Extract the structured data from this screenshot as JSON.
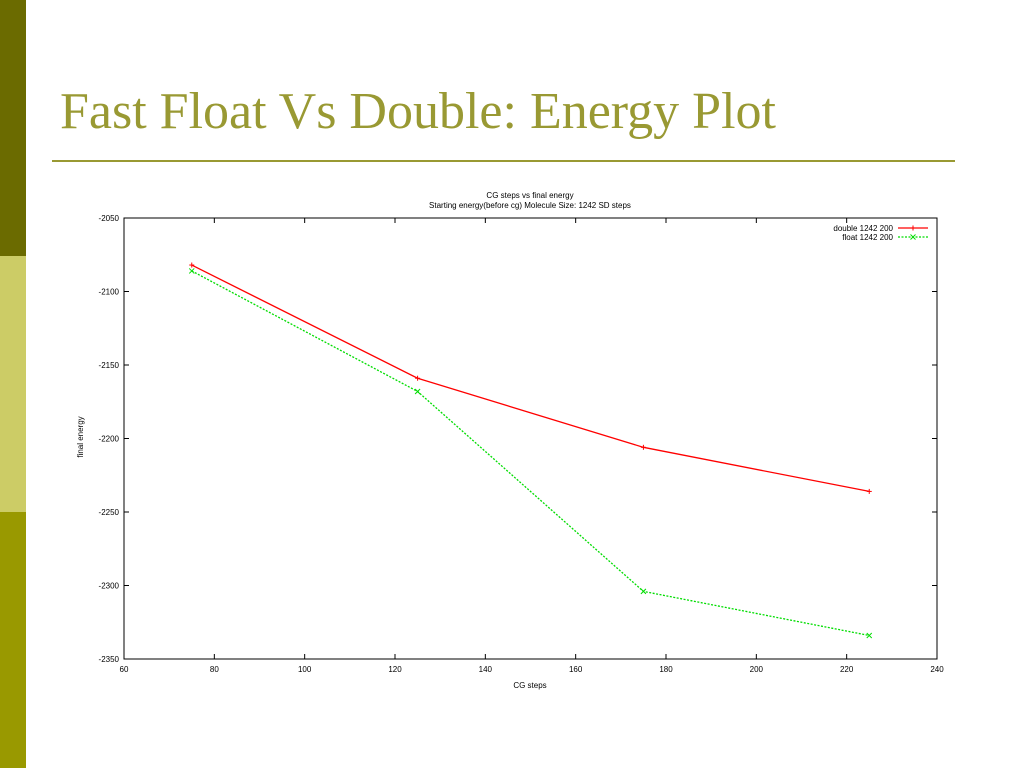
{
  "slide": {
    "title": "Fast Float Vs Double: Energy Plot"
  },
  "chart_data": {
    "type": "line",
    "title": "CG steps vs final energy",
    "subtitle": "Starting energy(before cg) Molecule Size: 1242 SD steps",
    "xlabel": "CG steps",
    "ylabel": "final energy",
    "xlim": [
      60,
      240
    ],
    "ylim": [
      -2350,
      -2050
    ],
    "xticks": [
      60,
      80,
      100,
      120,
      140,
      160,
      180,
      200,
      220,
      240
    ],
    "yticks": [
      -2050,
      -2100,
      -2150,
      -2200,
      -2250,
      -2300,
      -2350
    ],
    "grid": false,
    "legend_position": "top-right",
    "x": [
      75,
      125,
      175,
      225
    ],
    "series": [
      {
        "name": "double 1242 200",
        "color": "#ff0000",
        "marker": "+",
        "line_style": "solid",
        "values": [
          -2082,
          -2159,
          -2206,
          -2236
        ]
      },
      {
        "name": "float 1242 200",
        "color": "#00dd00",
        "marker": "x",
        "line_style": "dashed",
        "values": [
          -2086,
          -2168,
          -2304,
          -2334
        ]
      }
    ]
  }
}
